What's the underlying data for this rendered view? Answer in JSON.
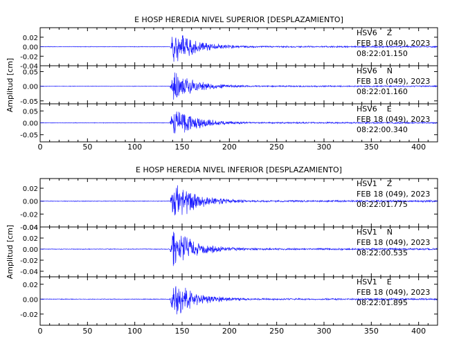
{
  "colors": {
    "trace": "#1a1aff",
    "axis": "#000000",
    "text": "#000000"
  },
  "chart_data": [
    {
      "type": "line",
      "title": "E HOSP HEREDIA NIVEL SUPERIOR [DESPLAZAMIENTO]",
      "ylabel": "Amplitud [cm]",
      "xlim": [
        0,
        420
      ],
      "xticks": [
        "0",
        "50",
        "100",
        "150",
        "200",
        "250",
        "300",
        "350",
        "400"
      ],
      "event_onset_s": 137,
      "traces": [
        {
          "station": "HSV6",
          "component": "Z",
          "date": "FEB 18 (049), 2023",
          "time": "08:22:01.150",
          "ylim": [
            -0.04,
            0.04
          ],
          "yticks": [
            "0.02",
            "0.00",
            "-0.02",
            "-0.04"
          ],
          "peak": 0.036
        },
        {
          "station": "HSV6",
          "component": "N",
          "date": "FEB 18 (049), 2023",
          "time": "08:22:01.160",
          "ylim": [
            -0.06,
            0.07
          ],
          "yticks": [
            "0.05",
            "0.00",
            "-0.05"
          ],
          "peak": 0.05
        },
        {
          "station": "HSV6",
          "component": "E",
          "date": "FEB 18 (049), 2023",
          "time": "08:22:00.340",
          "ylim": [
            -0.08,
            0.08
          ],
          "yticks": [
            "0.05",
            "0.00",
            "-0.05"
          ],
          "peak": 0.07
        }
      ]
    },
    {
      "type": "line",
      "title": "E HOSP HEREDIA NIVEL INFERIOR [DESPLAZAMIENTO]",
      "ylabel": "Amplitud [cm]",
      "xlim": [
        0,
        420
      ],
      "xticks": [
        "0",
        "50",
        "100",
        "150",
        "200",
        "250",
        "300",
        "350",
        "400"
      ],
      "event_onset_s": 137,
      "traces": [
        {
          "station": "HSV1",
          "component": "Z",
          "date": "FEB 18 (049), 2023",
          "time": "08:22:01.775",
          "ylim": [
            -0.04,
            0.035
          ],
          "yticks": [
            "0.02",
            "0.00",
            "-0.02",
            "-0.04"
          ],
          "peak": 0.032
        },
        {
          "station": "HSV1",
          "component": "N",
          "date": "FEB 18 (049), 2023",
          "time": "08:22:00.535",
          "ylim": [
            -0.05,
            0.04
          ],
          "yticks": [
            "0.04",
            "0.02",
            "0.00",
            "-0.02",
            "-0.04"
          ],
          "peak": 0.035
        },
        {
          "station": "HSV1",
          "component": "E",
          "date": "FEB 18 (049), 2023",
          "time": "08:22:01.895",
          "ylim": [
            -0.035,
            0.03
          ],
          "yticks": [
            "0.02",
            "0.00",
            "-0.02"
          ],
          "peak": 0.025
        }
      ]
    }
  ]
}
